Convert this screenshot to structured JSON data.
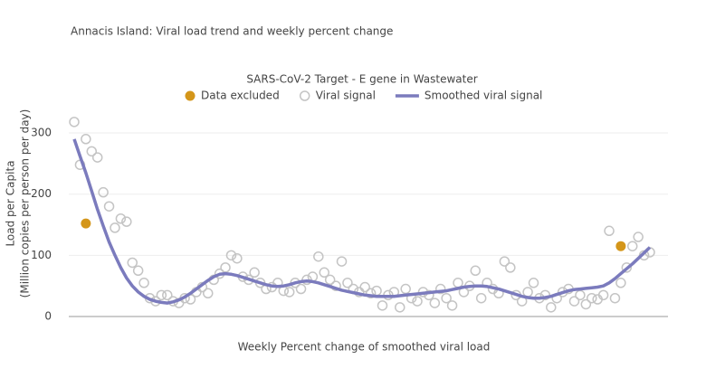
{
  "title": "Annacis Island: Viral load trend and weekly percent change",
  "chart_data": {
    "type": "scatter-line",
    "title": "SARS-CoV-2 Target - E gene in Wastewater",
    "ylabel": "Load per Capita",
    "ylabel2": "(Million copies per person per day)",
    "categories": [
      null,
      null,
      null,
      null,
      null,
      null,
      null,
      null,
      null,
      null,
      null,
      null,
      null,
      null,
      null,
      null,
      null,
      null,
      null,
      null,
      null,
      null,
      null,
      null,
      null,
      null,
      null,
      null,
      null,
      null,
      null,
      null,
      null,
      null,
      null,
      null,
      null,
      null,
      null,
      null,
      null,
      null,
      null,
      null,
      null,
      null,
      null,
      null,
      null,
      null,
      null,
      null,
      null,
      null,
      null,
      null,
      null,
      null,
      null,
      null,
      null,
      null,
      null,
      null,
      null,
      null,
      null,
      null,
      null,
      null,
      null,
      null,
      null,
      null,
      null,
      null,
      null,
      null,
      null,
      null,
      null,
      null,
      null,
      null,
      null,
      null,
      null,
      null,
      null,
      null,
      null,
      null,
      null,
      null,
      null,
      null,
      null,
      null,
      null,
      null
    ],
    "ylim": [
      0,
      320
    ],
    "yticks": [
      0,
      100,
      200,
      300
    ],
    "grid": true,
    "series": [
      {
        "name": "Data excluded",
        "color": "#d4961a",
        "style": "dot",
        "values": [
          null,
          null,
          152,
          null,
          null,
          null,
          null,
          null,
          null,
          null,
          null,
          null,
          null,
          null,
          null,
          null,
          null,
          null,
          null,
          null,
          null,
          null,
          null,
          null,
          null,
          null,
          null,
          null,
          null,
          null,
          null,
          null,
          null,
          null,
          null,
          null,
          null,
          null,
          null,
          null,
          null,
          null,
          null,
          null,
          null,
          null,
          null,
          null,
          null,
          null,
          null,
          null,
          null,
          null,
          null,
          null,
          null,
          null,
          null,
          null,
          null,
          null,
          null,
          null,
          null,
          null,
          null,
          null,
          null,
          null,
          null,
          null,
          null,
          null,
          null,
          null,
          null,
          null,
          null,
          null,
          null,
          null,
          null,
          null,
          null,
          null,
          null,
          null,
          null,
          null,
          null,
          null,
          null,
          null,
          115,
          null,
          null,
          null,
          null,
          null
        ]
      },
      {
        "name": "Viral signal",
        "color": "#c4c4c4",
        "style": "circle",
        "values": [
          318,
          248,
          290,
          270,
          260,
          203,
          180,
          145,
          160,
          155,
          88,
          75,
          55,
          30,
          25,
          35,
          35,
          25,
          22,
          30,
          28,
          40,
          48,
          38,
          60,
          70,
          80,
          100,
          95,
          65,
          60,
          72,
          55,
          45,
          48,
          55,
          42,
          40,
          55,
          45,
          60,
          65,
          98,
          72,
          60,
          50,
          90,
          55,
          45,
          40,
          48,
          38,
          42,
          18,
          35,
          40,
          15,
          45,
          30,
          25,
          40,
          35,
          22,
          45,
          30,
          18,
          55,
          40,
          50,
          75,
          30,
          55,
          45,
          38,
          90,
          80,
          35,
          25,
          40,
          55,
          30,
          35,
          15,
          30,
          40,
          45,
          25,
          35,
          20,
          30,
          28,
          35,
          140,
          30,
          55,
          80,
          115,
          130,
          100,
          105
        ]
      },
      {
        "name": "Smoothed viral signal",
        "color": "#7b7bbd",
        "style": "line",
        "values": [
          290,
          262,
          235,
          205,
          175,
          148,
          122,
          100,
          80,
          63,
          50,
          40,
          33,
          28,
          25,
          23,
          22,
          24,
          27,
          32,
          38,
          45,
          52,
          59,
          65,
          69,
          70,
          69,
          67,
          64,
          61,
          58,
          55,
          52,
          50,
          49,
          50,
          52,
          55,
          57,
          58,
          57,
          55,
          52,
          49,
          46,
          43,
          41,
          39,
          37,
          35,
          34,
          33,
          33,
          33,
          33,
          34,
          35,
          36,
          37,
          38,
          39,
          40,
          41,
          42,
          44,
          46,
          48,
          49,
          50,
          50,
          49,
          47,
          45,
          42,
          39,
          36,
          33,
          31,
          30,
          30,
          31,
          33,
          36,
          39,
          42,
          44,
          45,
          46,
          47,
          48,
          50,
          55,
          62,
          70,
          78,
          86,
          95,
          104,
          113
        ]
      }
    ]
  },
  "next_chart_title": "Weekly Percent change of smoothed viral load"
}
